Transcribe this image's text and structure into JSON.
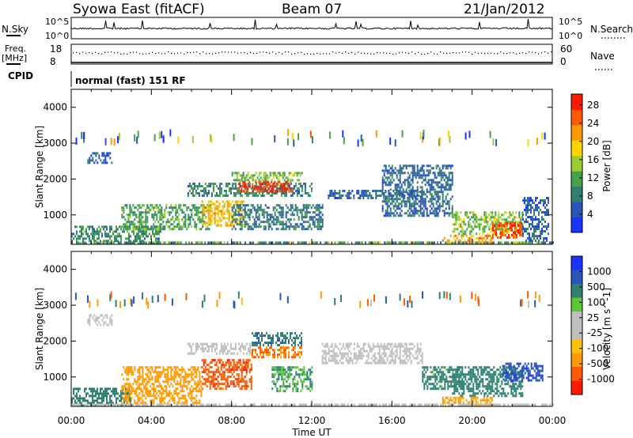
{
  "header": {
    "station": "Syowa East (fitACF)",
    "beam": "Beam 07",
    "date": "21/Jan/2012"
  },
  "noise_panel": {
    "left_label": "N.Sky",
    "right_label": "N.Search",
    "left_ticks": [
      "10^5",
      "10^0"
    ],
    "right_ticks": [
      "10^5",
      "10^0"
    ]
  },
  "freq_panel": {
    "left_label_line1": "Freq.",
    "left_label_line2": "[MHz]",
    "left_ticks": [
      "18",
      "8"
    ],
    "right_label": "Nave",
    "right_ticks": [
      "60",
      "0"
    ]
  },
  "cpid_panel": {
    "label": "CPID",
    "value": "normal (fast) 151 RF"
  },
  "x_axis": {
    "label": "Time UT",
    "ticks": [
      "00:00",
      "04:00",
      "08:00",
      "12:00",
      "16:00",
      "20:00",
      "00:00"
    ]
  },
  "colors": {
    "power_scale": [
      "#1a33ff",
      "#2a55b8",
      "#2f8070",
      "#47a04a",
      "#9acd32",
      "#ffd400",
      "#ff9a00",
      "#ff5a00",
      "#ff1a00"
    ],
    "velocity_scale": [
      "#ff1a00",
      "#ff5a00",
      "#ff9a00",
      "#ffc000",
      "#bfbfbf",
      "#bfbfbf",
      "#5ac832",
      "#2f8070",
      "#2a55b8",
      "#1a33ff"
    ]
  },
  "chart_data": [
    {
      "type": "heatmap",
      "title": "",
      "xlabel": "",
      "ylabel": "Slant Range [km]",
      "x_range_ut_hours": [
        0,
        24
      ],
      "ylim": [
        180,
        4500
      ],
      "yticks": [
        1000,
        2000,
        3000,
        4000
      ],
      "colorbar": {
        "label": "Power [dB]",
        "ticks": [
          "4",
          "8",
          "12",
          "16",
          "20",
          "24",
          "28"
        ],
        "range": [
          0,
          30
        ]
      },
      "regions": [
        {
          "t0": 0.0,
          "t1": 4.5,
          "r0": 200,
          "r1": 700,
          "v": 10
        },
        {
          "t0": 0.8,
          "t1": 2.0,
          "r0": 2450,
          "r1": 2750,
          "v": 6
        },
        {
          "t0": 2.5,
          "t1": 7.0,
          "r0": 600,
          "r1": 1300,
          "v": 11
        },
        {
          "t0": 6.5,
          "t1": 8.7,
          "r0": 700,
          "r1": 1400,
          "v": 20
        },
        {
          "t0": 5.8,
          "t1": 12.0,
          "r0": 1550,
          "r1": 1900,
          "v": 9
        },
        {
          "t0": 8.3,
          "t1": 11.0,
          "r0": 1650,
          "r1": 1950,
          "v": 28
        },
        {
          "t0": 8.0,
          "t1": 11.5,
          "r0": 1950,
          "r1": 2200,
          "v": 14
        },
        {
          "t0": 8.0,
          "t1": 12.5,
          "r0": 600,
          "r1": 1300,
          "v": 8
        },
        {
          "t0": 12.8,
          "t1": 17.5,
          "r0": 1450,
          "r1": 1700,
          "v": 6
        },
        {
          "t0": 15.5,
          "t1": 19.0,
          "r0": 1000,
          "r1": 2400,
          "v": 7
        },
        {
          "t0": 18.5,
          "t1": 21.0,
          "r0": 250,
          "r1": 450,
          "v": 22
        },
        {
          "t0": 19.0,
          "t1": 22.5,
          "r0": 500,
          "r1": 1100,
          "v": 14
        },
        {
          "t0": 21.0,
          "t1": 22.5,
          "r0": 350,
          "r1": 800,
          "v": 26
        },
        {
          "t0": 22.5,
          "t1": 23.8,
          "r0": 300,
          "r1": 1500,
          "v": 6
        }
      ]
    },
    {
      "type": "heatmap",
      "title": "",
      "xlabel": "Time UT",
      "ylabel": "Slant Range [km]",
      "x_range_ut_hours": [
        0,
        24
      ],
      "ylim": [
        180,
        4500
      ],
      "yticks": [
        1000,
        2000,
        3000,
        4000
      ],
      "colorbar": {
        "label": "Velocity [m s^-1]",
        "ticks": [
          "-1000",
          "-500",
          "-100",
          "-25",
          "25",
          "100",
          "500",
          "1000"
        ],
        "range": [
          -1200,
          1200
        ]
      },
      "regions": [
        {
          "t0": 0.0,
          "t1": 3.0,
          "r0": 200,
          "r1": 700,
          "v": 200
        },
        {
          "t0": 0.8,
          "t1": 2.0,
          "r0": 2450,
          "r1": 2750,
          "v": 0
        },
        {
          "t0": 2.5,
          "t1": 6.5,
          "r0": 300,
          "r1": 1300,
          "v": -300
        },
        {
          "t0": 6.5,
          "t1": 9.0,
          "r0": 700,
          "r1": 1500,
          "v": -800
        },
        {
          "t0": 5.8,
          "t1": 9.0,
          "r0": 1650,
          "r1": 1950,
          "v": 0
        },
        {
          "t0": 9.0,
          "t1": 11.5,
          "r0": 1900,
          "r1": 2250,
          "v": 400
        },
        {
          "t0": 9.0,
          "t1": 11.5,
          "r0": 1550,
          "r1": 1850,
          "v": -500
        },
        {
          "t0": 10.0,
          "t1": 12.0,
          "r0": 600,
          "r1": 1300,
          "v": 100
        },
        {
          "t0": 12.5,
          "t1": 17.5,
          "r0": 1400,
          "r1": 1950,
          "v": 0
        },
        {
          "t0": 17.5,
          "t1": 19.5,
          "r0": 700,
          "r1": 1300,
          "v": 150
        },
        {
          "t0": 19.0,
          "t1": 22.5,
          "r0": 500,
          "r1": 1300,
          "v": 300
        },
        {
          "t0": 21.5,
          "t1": 23.5,
          "r0": 900,
          "r1": 1400,
          "v": 900
        },
        {
          "t0": 18.5,
          "t1": 21.0,
          "r0": 250,
          "r1": 450,
          "v": -150
        }
      ]
    }
  ]
}
